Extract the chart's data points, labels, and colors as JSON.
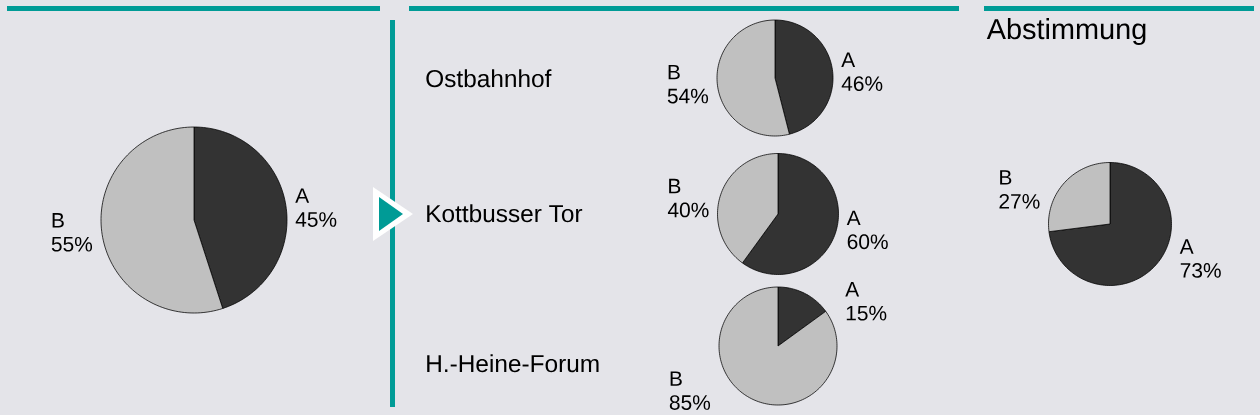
{
  "chart_data": [
    {
      "type": "pie",
      "categories": [
        "A",
        "B"
      ],
      "values": [
        45,
        55
      ],
      "colors": [
        "#333333",
        "#c0c0c0"
      ],
      "value_labels": [
        "45%",
        "55%"
      ]
    },
    {
      "type": "pie",
      "title": "Ostbahnhof",
      "categories": [
        "A",
        "B"
      ],
      "values": [
        46,
        54
      ],
      "colors": [
        "#333333",
        "#c0c0c0"
      ],
      "value_labels": [
        "46%",
        "54%"
      ]
    },
    {
      "type": "pie",
      "title": "Kottbusser Tor",
      "categories": [
        "A",
        "B"
      ],
      "values": [
        60,
        40
      ],
      "colors": [
        "#333333",
        "#c0c0c0"
      ],
      "value_labels": [
        "60%",
        "40%"
      ]
    },
    {
      "type": "pie",
      "title": "H.-Heine-Forum",
      "categories": [
        "A",
        "B"
      ],
      "values": [
        15,
        85
      ],
      "colors": [
        "#333333",
        "#c0c0c0"
      ],
      "value_labels": [
        "15%",
        "85%"
      ]
    },
    {
      "type": "pie",
      "title": "Abstimmung",
      "categories": [
        "A",
        "B"
      ],
      "values": [
        73,
        27
      ],
      "colors": [
        "#333333",
        "#c0c0c0"
      ],
      "value_labels": [
        "73%",
        "27%"
      ]
    }
  ]
}
